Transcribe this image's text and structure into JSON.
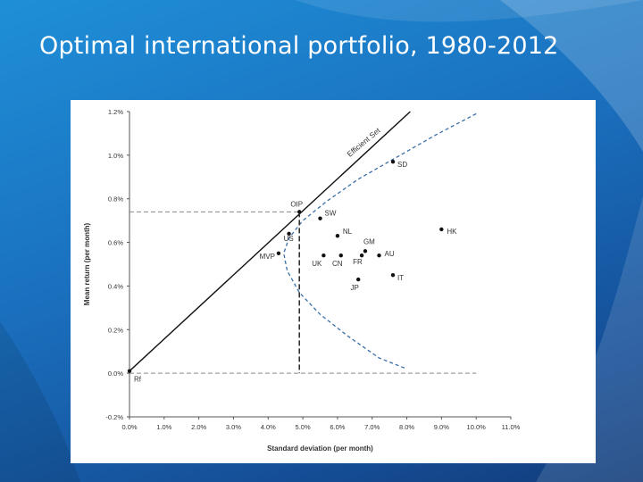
{
  "slide": {
    "title": "Optimal international portfolio, 1980-2012"
  },
  "chart_data": {
    "type": "scatter",
    "title": "",
    "xlabel": "Standard deviation (per month)",
    "ylabel": "Mean return (per month)",
    "xlim": [
      0.0,
      11.0
    ],
    "ylim": [
      -0.2,
      1.2
    ],
    "xticks": [
      "0.0%",
      "1.0%",
      "2.0%",
      "3.0%",
      "4.0%",
      "5.0%",
      "6.0%",
      "7.0%",
      "8.0%",
      "9.0%",
      "10.0%",
      "11.0%"
    ],
    "yticks": [
      "-0.2%",
      "0.0%",
      "0.2%",
      "0.4%",
      "0.6%",
      "0.8%",
      "1.0%",
      "1.2%"
    ],
    "grid": false,
    "points": [
      {
        "label": "Rf",
        "x": 0.0,
        "y": 0.01
      },
      {
        "label": "OIP",
        "x": 4.9,
        "y": 0.74
      },
      {
        "label": "SW",
        "x": 5.5,
        "y": 0.71
      },
      {
        "label": "US",
        "x": 4.6,
        "y": 0.64
      },
      {
        "label": "NL",
        "x": 6.0,
        "y": 0.63
      },
      {
        "label": "MVP",
        "x": 4.3,
        "y": 0.55
      },
      {
        "label": "UK",
        "x": 5.6,
        "y": 0.54
      },
      {
        "label": "CN",
        "x": 6.1,
        "y": 0.54
      },
      {
        "label": "GM",
        "x": 6.8,
        "y": 0.56
      },
      {
        "label": "FR",
        "x": 6.7,
        "y": 0.54
      },
      {
        "label": "AU",
        "x": 7.2,
        "y": 0.54
      },
      {
        "label": "IT",
        "x": 7.6,
        "y": 0.45
      },
      {
        "label": "JP",
        "x": 6.6,
        "y": 0.43
      },
      {
        "label": "SD",
        "x": 7.6,
        "y": 0.97
      },
      {
        "label": "HK",
        "x": 9.0,
        "y": 0.66
      }
    ],
    "lines": [
      {
        "name": "Efficient Set",
        "style": "solid",
        "points": [
          [
            0.0,
            0.01
          ],
          [
            8.1,
            1.2
          ]
        ]
      },
      {
        "name": "frontier",
        "style": "dashed",
        "points": [
          [
            10.0,
            1.19
          ],
          [
            8.8,
            1.09
          ],
          [
            7.7,
            0.99
          ],
          [
            6.6,
            0.89
          ],
          [
            5.7,
            0.79
          ],
          [
            5.0,
            0.7
          ],
          [
            4.6,
            0.62
          ],
          [
            4.45,
            0.55
          ],
          [
            4.55,
            0.47
          ],
          [
            4.9,
            0.37
          ],
          [
            5.5,
            0.27
          ],
          [
            6.3,
            0.17
          ],
          [
            7.2,
            0.07
          ],
          [
            8.0,
            0.02
          ]
        ]
      },
      {
        "name": "OIP horizontal",
        "style": "dashed",
        "points": [
          [
            0.0,
            0.74
          ],
          [
            4.9,
            0.74
          ]
        ]
      },
      {
        "name": "OIP vertical",
        "style": "dashed",
        "points": [
          [
            4.9,
            0.74
          ],
          [
            4.9,
            0.0
          ]
        ]
      },
      {
        "name": "zero line",
        "style": "dashed",
        "points": [
          [
            0.0,
            0.0
          ],
          [
            10.0,
            0.0
          ]
        ]
      }
    ],
    "annotations": [
      {
        "text": "Efficient Set",
        "x": 6.8,
        "y": 1.05,
        "angle": -40
      }
    ],
    "colors": {
      "solid": "#111111",
      "dashed": "#3a6fa8",
      "gray_dashed": "#888888",
      "point": "#111111"
    }
  }
}
